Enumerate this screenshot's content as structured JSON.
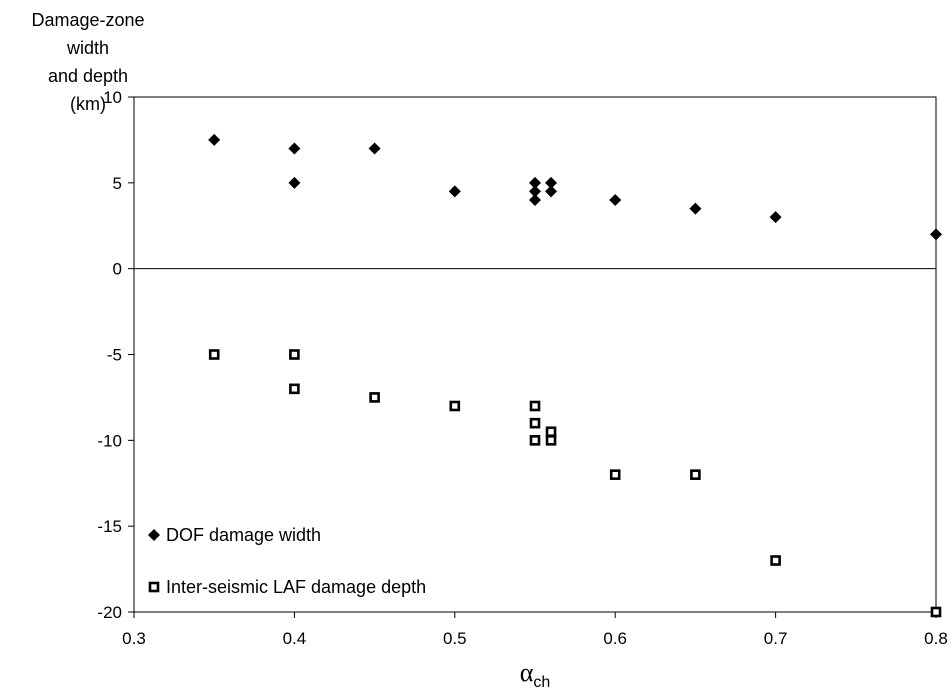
{
  "chart_data": {
    "type": "scatter",
    "ylabel_lines": [
      "Damage-zone width",
      "and depth",
      "(km)"
    ],
    "xlabel": {
      "symbol": "α",
      "subscript": "ch"
    },
    "xlim": [
      0.3,
      0.8
    ],
    "ylim": [
      -20,
      10
    ],
    "xticks": [
      "0.3",
      "0.4",
      "0.5",
      "0.6",
      "0.7",
      "0.8"
    ],
    "yticks": [
      "10",
      "5",
      "0",
      "-5",
      "-10",
      "-15",
      "-20"
    ],
    "grid": false,
    "legend_position": "bottom-left",
    "series": [
      {
        "name": "DOF damage width",
        "marker": "diamond-filled",
        "points": [
          [
            0.35,
            7.5
          ],
          [
            0.4,
            7.0
          ],
          [
            0.4,
            5.0
          ],
          [
            0.45,
            7.0
          ],
          [
            0.5,
            4.5
          ],
          [
            0.55,
            5.0
          ],
          [
            0.55,
            4.5
          ],
          [
            0.55,
            4.0
          ],
          [
            0.56,
            5.0
          ],
          [
            0.56,
            4.5
          ],
          [
            0.6,
            4.0
          ],
          [
            0.65,
            3.5
          ],
          [
            0.7,
            3.0
          ],
          [
            0.8,
            2.0
          ]
        ]
      },
      {
        "name": "Inter-seismic LAF damage depth",
        "marker": "square-open",
        "points": [
          [
            0.35,
            -5.0
          ],
          [
            0.4,
            -5.0
          ],
          [
            0.4,
            -7.0
          ],
          [
            0.45,
            -7.5
          ],
          [
            0.5,
            -8.0
          ],
          [
            0.55,
            -8.0
          ],
          [
            0.55,
            -9.0
          ],
          [
            0.55,
            -10.0
          ],
          [
            0.56,
            -9.5
          ],
          [
            0.56,
            -10.0
          ],
          [
            0.6,
            -12.0
          ],
          [
            0.65,
            -12.0
          ],
          [
            0.7,
            -17.0
          ],
          [
            0.8,
            -20.0
          ]
        ]
      }
    ]
  }
}
